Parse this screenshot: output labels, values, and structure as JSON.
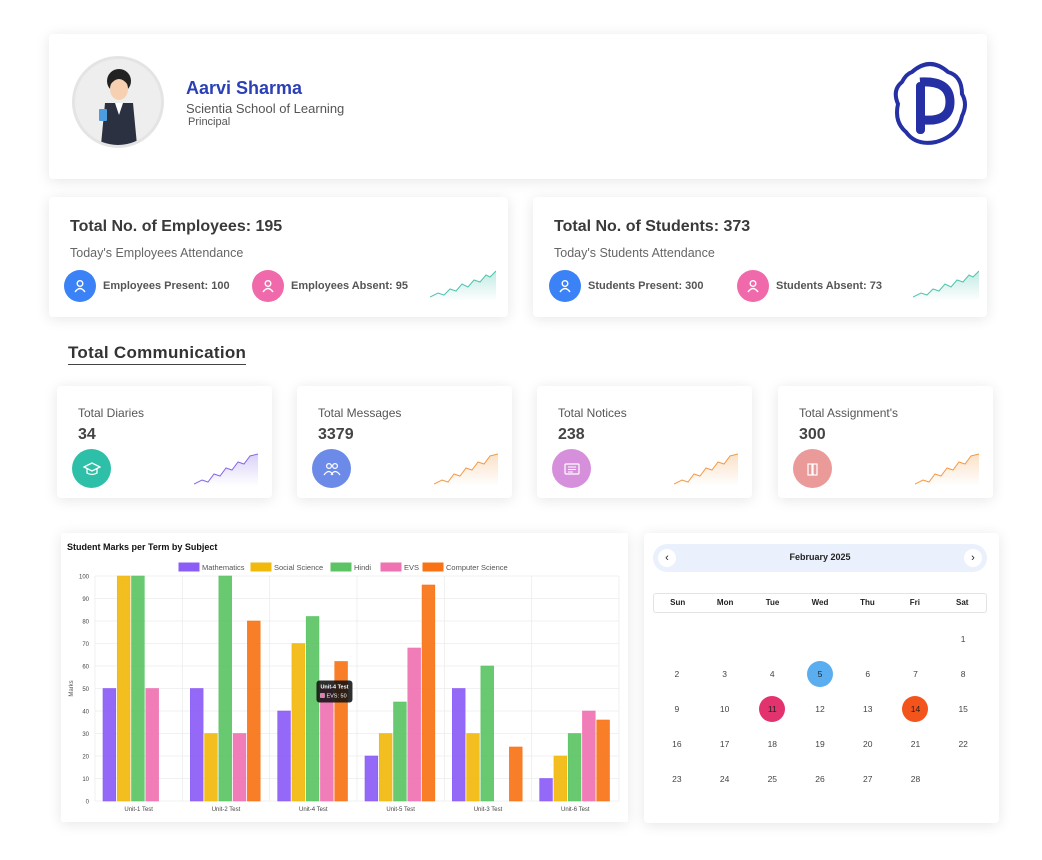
{
  "profile": {
    "name": "Aarvi Sharma",
    "school": "Scientia School of Learning",
    "role": "Principal",
    "logo_letter": "P"
  },
  "employees": {
    "title": "Total No. of Employees: 195",
    "subtitle": "Today's Employees Attendance",
    "present_label": "Employees Present: 100",
    "absent_label": "Employees Absent: 95"
  },
  "students": {
    "title": "Total No. of Students: 373",
    "subtitle": "Today's Students Attendance",
    "present_label": "Students Present: 300",
    "absent_label": "Students Absent: 73"
  },
  "communication": {
    "section_title": "Total Communication",
    "cards": [
      {
        "label": "Total Diaries",
        "value": "34",
        "icon": "graduation-cap-icon",
        "color": "#2ebfa9",
        "spark": "#8566e8"
      },
      {
        "label": "Total Messages",
        "value": "3379",
        "icon": "users-icon",
        "color": "#6c8be8",
        "spark": "#f29a45"
      },
      {
        "label": "Total Notices",
        "value": "238",
        "icon": "notice-icon",
        "color": "#d58fdb",
        "spark": "#f29a45"
      },
      {
        "label": "Total Assignment's",
        "value": "300",
        "icon": "books-icon",
        "color": "#ea9a99",
        "spark": "#f29a45"
      }
    ]
  },
  "colors": {
    "present_icon": "#3b82f6",
    "absent_icon": "#f06aab",
    "spark_teal": "#4fc3b0"
  },
  "chart_data": {
    "type": "bar",
    "title": "Student Marks per Term by Subject",
    "ylabel": "Marks",
    "xlabel": "",
    "ylim": [
      0,
      100
    ],
    "yticks": [
      0,
      10,
      20,
      30,
      40,
      50,
      60,
      70,
      80,
      90,
      100
    ],
    "categories": [
      "Unit-1 Test",
      "Unit-2 Test",
      "Unit-4 Test",
      "Unit-5 Test",
      "Unit-3 Test",
      "Unit-6 Test"
    ],
    "series": [
      {
        "name": "Mathematics",
        "color": "#8b5cf6",
        "values": [
          50,
          50,
          40,
          20,
          50,
          10
        ]
      },
      {
        "name": "Social Science",
        "color": "#f2b90d",
        "values": [
          100,
          30,
          70,
          30,
          30,
          20
        ]
      },
      {
        "name": "Hindi",
        "color": "#5cc464",
        "values": [
          100,
          100,
          82,
          44,
          60,
          30
        ]
      },
      {
        "name": "EVS",
        "color": "#ef72b2",
        "values": [
          50,
          30,
          50,
          68,
          0,
          40
        ]
      },
      {
        "name": "Computer Science",
        "color": "#f97316",
        "values": [
          0,
          80,
          62,
          96,
          24,
          36
        ]
      }
    ],
    "grid": true,
    "legend": "top",
    "tooltip": {
      "title": "Unit-4 Test",
      "body": "EVS: 50"
    }
  },
  "calendar": {
    "month": "February 2025",
    "prev": "‹",
    "next": "›",
    "weekdays": [
      "Sun",
      "Mon",
      "Tue",
      "Wed",
      "Thu",
      "Fri",
      "Sat"
    ],
    "weeks": [
      [
        "",
        "",
        "",
        "",
        "",
        "",
        "1"
      ],
      [
        "2",
        "3",
        "4",
        "5",
        "6",
        "7",
        "8"
      ],
      [
        "9",
        "10",
        "11",
        "12",
        "13",
        "14",
        "15"
      ],
      [
        "16",
        "17",
        "18",
        "19",
        "20",
        "21",
        "22"
      ],
      [
        "23",
        "24",
        "25",
        "26",
        "27",
        "28",
        ""
      ]
    ],
    "highlights": {
      "5": "#5aaef0",
      "11": "#e2336f",
      "14": "#f2541b"
    }
  }
}
